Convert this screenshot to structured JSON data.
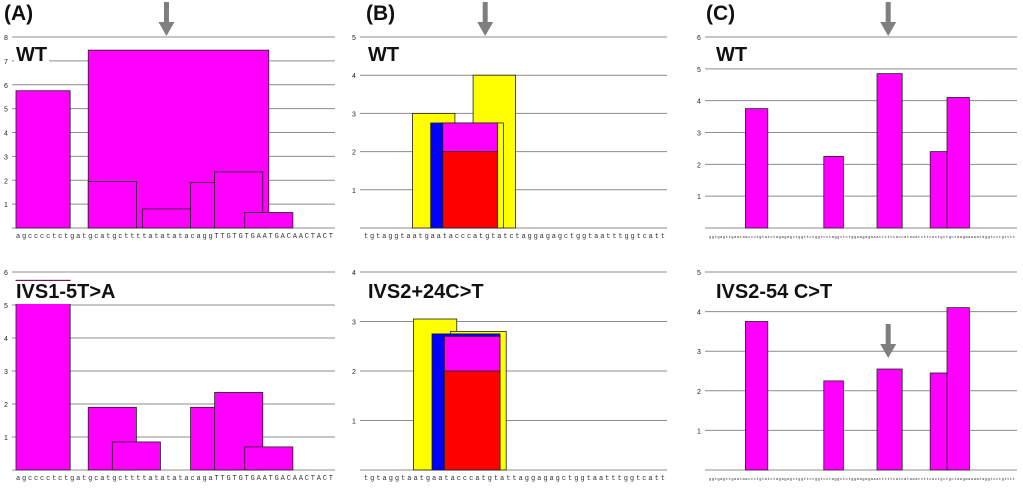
{
  "colors": {
    "magenta": "#ff00ff",
    "yellow": "#ffff00",
    "blue": "#0000ff",
    "red": "#ff0000",
    "arrow": "#7f7f7f",
    "grid": "#8c8c8c",
    "border": "#202020"
  },
  "panels": [
    {
      "letter": "(A)"
    },
    {
      "letter": "(B)"
    },
    {
      "letter": "(C)"
    }
  ],
  "chart_data": [
    {
      "id": "A-top",
      "type": "bar",
      "panel": "(A)",
      "title": "WT",
      "ylim": [
        0,
        8
      ],
      "yticks": [
        1,
        2,
        3,
        4,
        5,
        6,
        7,
        8
      ],
      "sequence": "agcccctctgatgcatgcttttatatatacaggTTGTGTGAATGACAACTACT",
      "arrow_at_base": 26,
      "bars": [
        {
          "start": 1,
          "end": 9,
          "value": 5.75,
          "color": "magenta"
        },
        {
          "start": 13,
          "end": 42,
          "value": 7.45,
          "color": "magenta"
        },
        {
          "start": 13,
          "end": 20,
          "value": 1.95,
          "color": "magenta"
        },
        {
          "start": 22,
          "end": 29,
          "value": 0.8,
          "color": "magenta"
        },
        {
          "start": 30,
          "end": 37,
          "value": 1.9,
          "color": "magenta"
        },
        {
          "start": 34,
          "end": 41,
          "value": 2.35,
          "color": "magenta"
        },
        {
          "start": 39,
          "end": 46,
          "value": 0.65,
          "color": "magenta"
        }
      ]
    },
    {
      "id": "A-bottom",
      "type": "bar",
      "panel": "(A)",
      "title": "IVS1-5T>A",
      "ylim": [
        0,
        6
      ],
      "yticks": [
        1,
        2,
        3,
        4,
        5,
        6
      ],
      "sequence": "agcccctctgatgcatgcttttatatatacagaTTGTGTGAATGACAACTACT",
      "bars": [
        {
          "start": 1,
          "end": 9,
          "value": 5.75,
          "color": "magenta"
        },
        {
          "start": 13,
          "end": 20,
          "value": 1.9,
          "color": "magenta"
        },
        {
          "start": 17,
          "end": 24,
          "value": 0.85,
          "color": "magenta"
        },
        {
          "start": 30,
          "end": 37,
          "value": 1.9,
          "color": "magenta"
        },
        {
          "start": 34,
          "end": 41,
          "value": 2.35,
          "color": "magenta"
        },
        {
          "start": 39,
          "end": 46,
          "value": 0.7,
          "color": "magenta"
        }
      ]
    },
    {
      "id": "B-top",
      "type": "bar",
      "panel": "(B)",
      "title": "WT",
      "ylim": [
        0,
        5
      ],
      "yticks": [
        1,
        2,
        3,
        4,
        5
      ],
      "sequence": "tgtaggtaatgaatacccatgtatctaggagagctggtaatttggtcatt",
      "arrow_at_base": 21,
      "bars": [
        {
          "start": 9,
          "end": 15,
          "value": 3.0,
          "color": "yellow"
        },
        {
          "start": 19,
          "end": 25,
          "value": 4.0,
          "color": "yellow"
        },
        {
          "start": 15,
          "end": 23,
          "value": 2.75,
          "color": "yellow"
        },
        {
          "start": 12,
          "end": 22,
          "value": 2.75,
          "color": "blue"
        },
        {
          "start": 14,
          "end": 22,
          "value": 2.75,
          "color": "magenta"
        },
        {
          "start": 14,
          "end": 22,
          "value": 2.0,
          "color": "red"
        }
      ]
    },
    {
      "id": "B-bottom",
      "type": "bar",
      "panel": "(B)",
      "title": "IVS2+24C>T",
      "ylim": [
        0,
        4
      ],
      "yticks": [
        1,
        2,
        3,
        4
      ],
      "sequence": "tgtaggtaatgaatacccatgtattaggagagctggtaatttggtcatt",
      "bars": [
        {
          "start": 9,
          "end": 15,
          "value": 3.05,
          "color": "yellow"
        },
        {
          "start": 15,
          "end": 23,
          "value": 2.8,
          "color": "yellow"
        },
        {
          "start": 12,
          "end": 22,
          "value": 2.75,
          "color": "blue"
        },
        {
          "start": 14,
          "end": 22,
          "value": 2.7,
          "color": "magenta"
        },
        {
          "start": 14,
          "end": 22,
          "value": 2.0,
          "color": "red"
        }
      ]
    },
    {
      "id": "C-top",
      "type": "bar",
      "panel": "(C)",
      "title": "WT",
      "ylim": [
        0,
        6
      ],
      "yticks": [
        1,
        2,
        3,
        4,
        5,
        6
      ],
      "sequence": "ggtgagttgaataaccctgtatctagagagctggttctggtcctaggctctggaagagaaatttttcaccataaatcttcactgctgctaagaaaaataggtcctgtttt",
      "arrow_at_base": 65,
      "bars": [
        {
          "start": 14,
          "end": 21,
          "value": 3.75,
          "color": "magenta"
        },
        {
          "start": 42,
          "end": 48,
          "value": 2.25,
          "color": "magenta"
        },
        {
          "start": 61,
          "end": 69,
          "value": 4.85,
          "color": "magenta"
        },
        {
          "start": 80,
          "end": 86,
          "value": 2.4,
          "color": "magenta"
        },
        {
          "start": 86,
          "end": 93,
          "value": 4.1,
          "color": "magenta"
        }
      ]
    },
    {
      "id": "C-bottom",
      "type": "bar",
      "panel": "(C)",
      "title": "IVS2-54 C>T",
      "ylim": [
        0,
        5
      ],
      "yticks": [
        1,
        2,
        3,
        4,
        5
      ],
      "sequence": "ggtgagttgaataaccctgtatctagagagctggttctggtcctaggctctggaagagaaatttttcatcataaatcttcactgctgctaagaaaaataggtcctgtttt",
      "arrow_at_base": 65,
      "bars": [
        {
          "start": 14,
          "end": 21,
          "value": 3.75,
          "color": "magenta"
        },
        {
          "start": 42,
          "end": 48,
          "value": 2.25,
          "color": "magenta"
        },
        {
          "start": 61,
          "end": 69,
          "value": 2.55,
          "color": "magenta"
        },
        {
          "start": 80,
          "end": 86,
          "value": 2.45,
          "color": "magenta"
        },
        {
          "start": 86,
          "end": 93,
          "value": 4.1,
          "color": "magenta"
        }
      ]
    }
  ]
}
